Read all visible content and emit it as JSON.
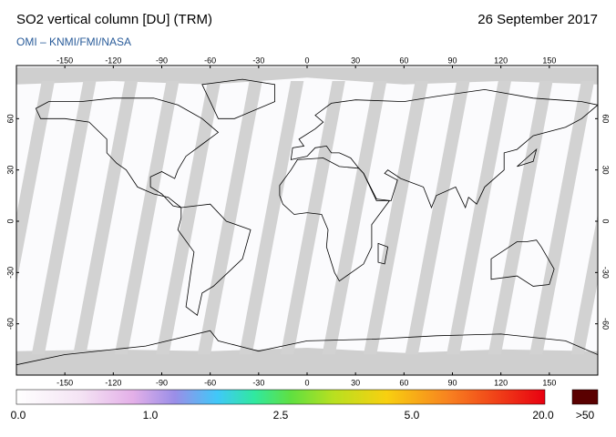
{
  "header": {
    "title": "SO2 vertical column [DU] (TRM)",
    "date": "26 September 2017",
    "source": "OMI  –  KNMI/FMI/NASA"
  },
  "map": {
    "lon_ticks": [
      -150,
      -120,
      -90,
      -60,
      -30,
      0,
      30,
      60,
      90,
      120,
      150
    ],
    "lat_ticks": [
      60,
      30,
      0,
      -30,
      -60
    ]
  },
  "colorbar": {
    "labels": [
      "0.0",
      "1.0",
      "2.5",
      "5.0",
      "20.0",
      ">50"
    ]
  }
}
